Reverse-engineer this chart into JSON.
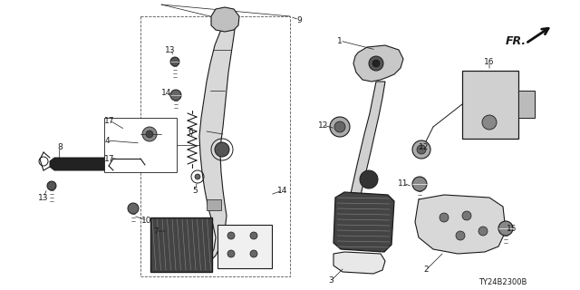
{
  "bg_color": "#ffffff",
  "line_color": "#1a1a1a",
  "text_color": "#1a1a1a",
  "label_fontsize": 6.5,
  "diagram_code": "TY24B2300B",
  "fig_width": 6.4,
  "fig_height": 3.2,
  "dpi": 100
}
